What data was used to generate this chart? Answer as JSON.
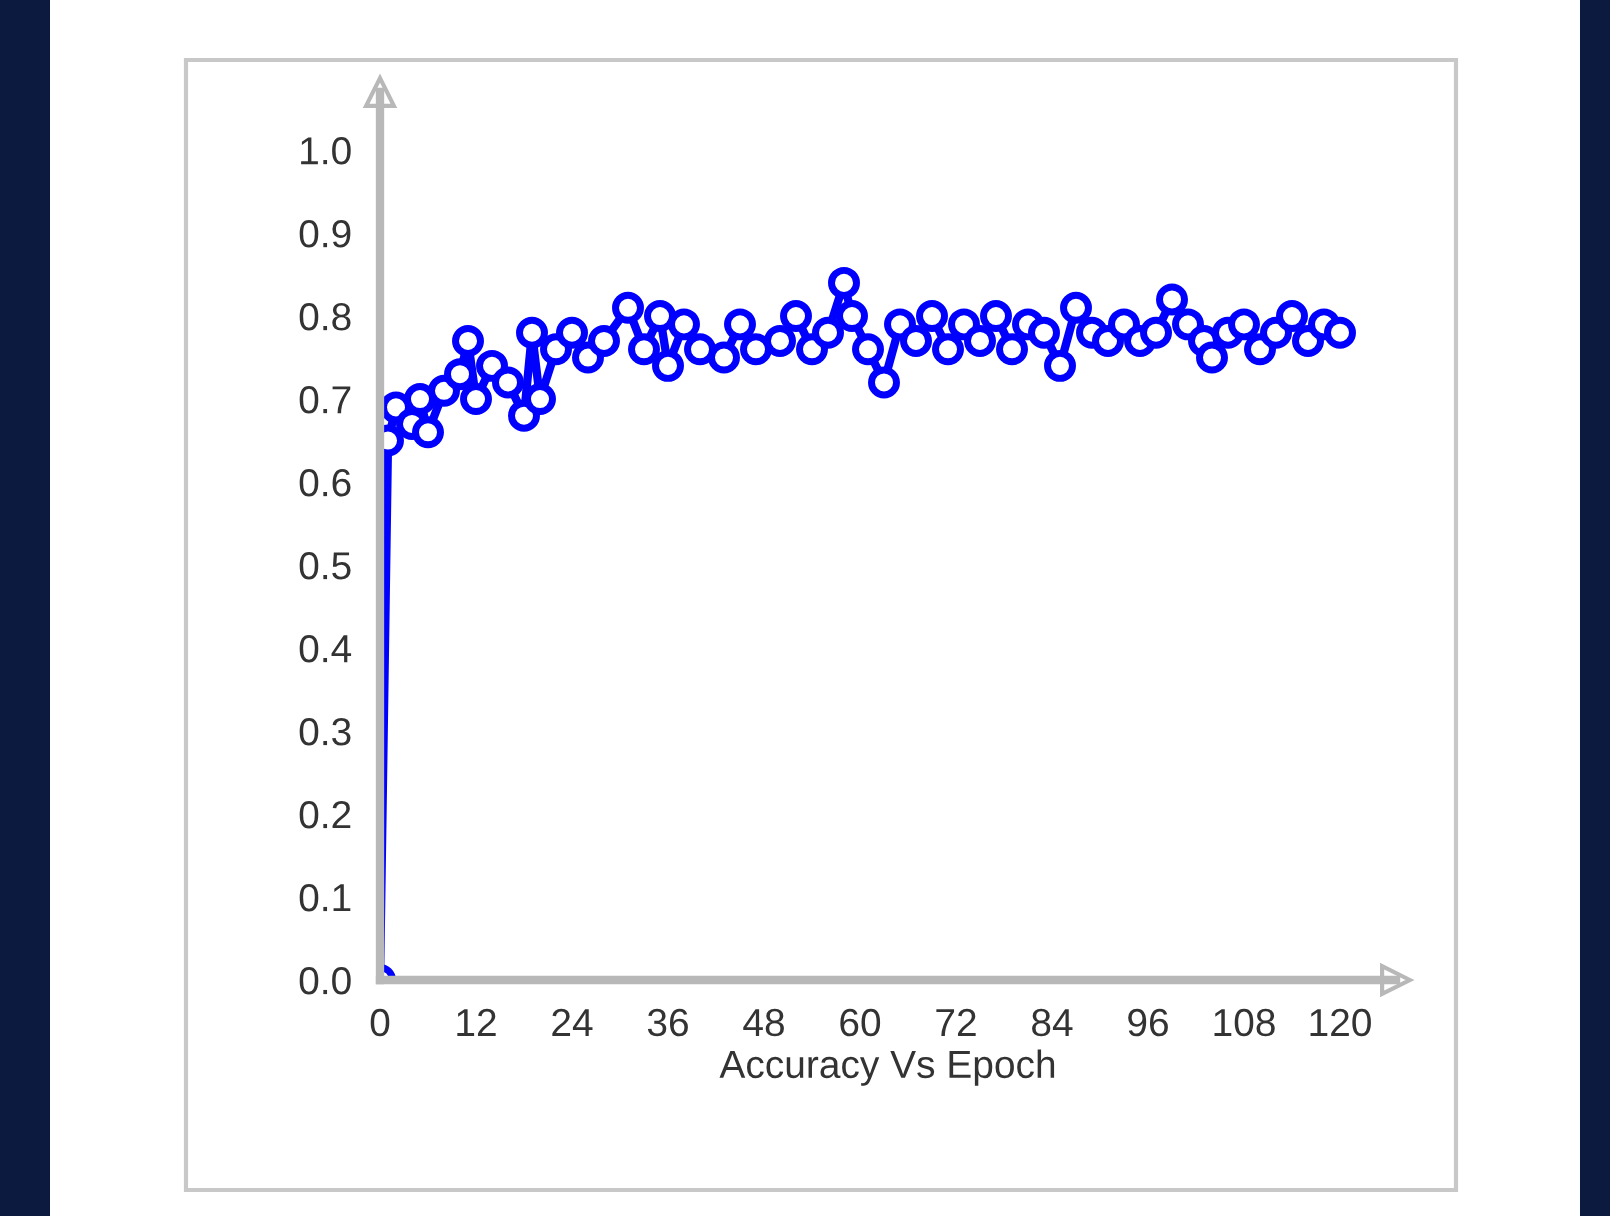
{
  "chart_data": {
    "type": "line",
    "xlabel": "Accuracy Vs Epoch",
    "x": [
      0,
      1,
      2,
      4,
      5,
      6,
      8,
      10,
      11,
      12,
      14,
      16,
      18,
      19,
      20,
      22,
      24,
      26,
      28,
      31,
      33,
      35,
      36,
      38,
      40,
      43,
      45,
      47,
      50,
      52,
      54,
      56,
      58,
      59,
      61,
      63,
      65,
      67,
      69,
      71,
      73,
      75,
      77,
      79,
      81,
      83,
      85,
      87,
      89,
      91,
      93,
      95,
      97,
      99,
      101,
      103,
      104,
      106,
      108,
      110,
      112,
      114,
      116,
      118,
      120
    ],
    "series": [
      {
        "color": "#0000ff",
        "values": [
          0.0,
          0.65,
          0.69,
          0.67,
          0.7,
          0.66,
          0.71,
          0.73,
          0.77,
          0.7,
          0.74,
          0.72,
          0.68,
          0.78,
          0.7,
          0.76,
          0.78,
          0.75,
          0.77,
          0.81,
          0.76,
          0.8,
          0.74,
          0.79,
          0.76,
          0.75,
          0.79,
          0.76,
          0.77,
          0.8,
          0.76,
          0.78,
          0.84,
          0.8,
          0.76,
          0.72,
          0.79,
          0.77,
          0.8,
          0.76,
          0.79,
          0.77,
          0.8,
          0.76,
          0.79,
          0.78,
          0.74,
          0.81,
          0.78,
          0.77,
          0.79,
          0.77,
          0.78,
          0.82,
          0.79,
          0.77,
          0.75,
          0.78,
          0.79,
          0.76,
          0.78,
          0.8,
          0.77,
          0.79,
          0.78
        ]
      }
    ],
    "xlim": [
      0,
      127
    ],
    "xticks": [
      0,
      12,
      24,
      36,
      48,
      60,
      72,
      84,
      96,
      108,
      120
    ],
    "ylim": [
      0,
      1.07
    ],
    "yticks": [
      {
        "value": 0,
        "label": "0.0"
      },
      {
        "value": 0.1,
        "label": "0.1"
      },
      {
        "value": 0.2,
        "label": "0.2"
      },
      {
        "value": 0.3,
        "label": "0.3"
      },
      {
        "value": 0.4,
        "label": "0.4"
      },
      {
        "value": 0.5,
        "label": "0.5"
      },
      {
        "value": 0.6,
        "label": "0.6"
      },
      {
        "value": 0.7,
        "label": "0.7"
      },
      {
        "value": 0.8,
        "label": "0.8"
      },
      {
        "value": 0.9,
        "label": "0.9"
      },
      {
        "value": 1.0,
        "label": "1.0"
      }
    ],
    "marker": "circle",
    "line_style": "solid",
    "grid": false,
    "legend": false
  }
}
